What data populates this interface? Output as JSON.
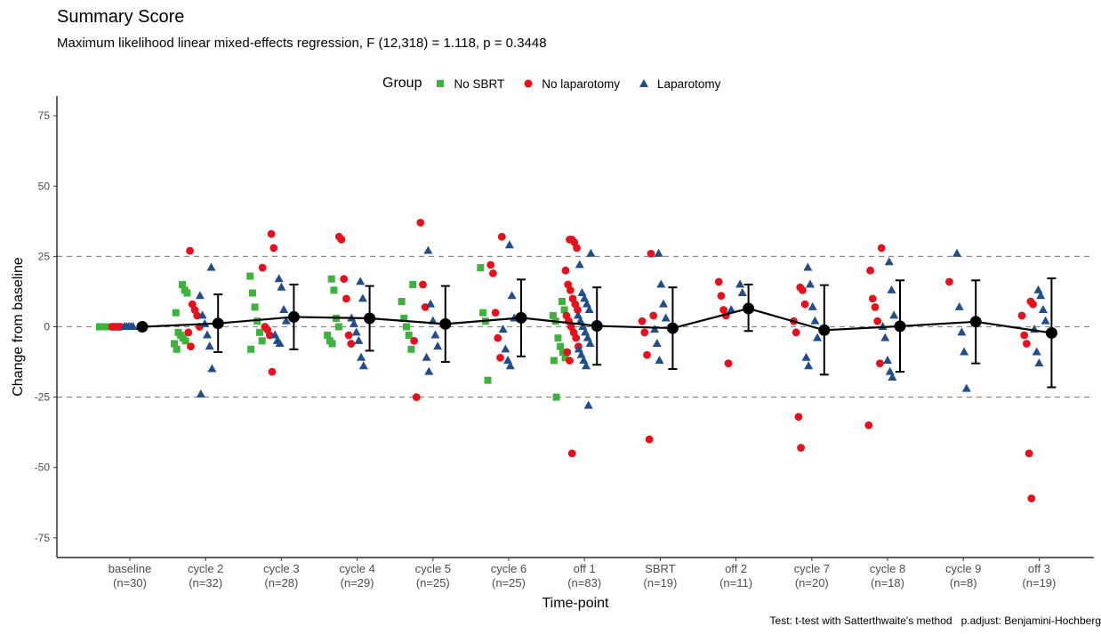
{
  "chart_data": {
    "type": "scatter",
    "title": "Summary Score",
    "subtitle": "Maximum likelihood linear mixed-effects regression, F (12,318) = 1.118, p = 0.3448",
    "xlabel": "Time-point",
    "ylabel": "Change from baseline",
    "ylim": [
      -82,
      82
    ],
    "yticks": [
      -75,
      -50,
      -25,
      0,
      25,
      50,
      75
    ],
    "reference_lines": [
      -25,
      0,
      25
    ],
    "grid": false,
    "legend_title": "Group",
    "legend_position": "top",
    "footer": "Test: t-test with Satterthwaite's method   p.adjust: Benjamini-Hochberg",
    "categories": [
      "baseline",
      "cycle 2",
      "cycle 3",
      "cycle 4",
      "cycle 5",
      "cycle 6",
      "off 1",
      "SBRT",
      "off 2",
      "cycle 7",
      "cycle 8",
      "cycle 9",
      "off 3"
    ],
    "category_n": [
      "(n=30)",
      "(n=32)",
      "(n=28)",
      "(n=29)",
      "(n=25)",
      "(n=25)",
      "(n=83)",
      "(n=19)",
      "(n=11)",
      "(n=20)",
      "(n=18)",
      "(n=8)",
      "(n=19)"
    ],
    "series": [
      {
        "name": "No SBRT",
        "color": "#3cb43c",
        "marker": "square",
        "points": [
          [
            0,
            0
          ],
          [
            0,
            0
          ],
          [
            0,
            0
          ],
          [
            0,
            0
          ],
          [
            0,
            0
          ],
          [
            0,
            0
          ],
          [
            0,
            0
          ],
          [
            0,
            0
          ],
          [
            0,
            0
          ],
          [
            0,
            0
          ],
          [
            1,
            15
          ],
          [
            1,
            13
          ],
          [
            1,
            12
          ],
          [
            1,
            5
          ],
          [
            1,
            -2
          ],
          [
            1,
            -3
          ],
          [
            1,
            -4
          ],
          [
            1,
            -5
          ],
          [
            1,
            -6
          ],
          [
            1,
            -8
          ],
          [
            2,
            18
          ],
          [
            2,
            12
          ],
          [
            2,
            7
          ],
          [
            2,
            2
          ],
          [
            2,
            -2
          ],
          [
            2,
            -5
          ],
          [
            2,
            -8
          ],
          [
            3,
            17
          ],
          [
            3,
            13
          ],
          [
            3,
            3
          ],
          [
            3,
            0
          ],
          [
            3,
            -3
          ],
          [
            3,
            -5
          ],
          [
            3,
            -6
          ],
          [
            4,
            15
          ],
          [
            4,
            9
          ],
          [
            4,
            3
          ],
          [
            4,
            0
          ],
          [
            4,
            -3
          ],
          [
            4,
            -8
          ],
          [
            5,
            21
          ],
          [
            5,
            5
          ],
          [
            5,
            2
          ],
          [
            5,
            -19
          ],
          [
            6,
            9
          ],
          [
            6,
            6
          ],
          [
            6,
            4
          ],
          [
            6,
            2
          ],
          [
            6,
            -4
          ],
          [
            6,
            -7
          ],
          [
            6,
            -9
          ],
          [
            6,
            -11
          ],
          [
            6,
            -12
          ],
          [
            6,
            -25
          ]
        ]
      },
      {
        "name": "No laparotomy",
        "color": "#e8101a",
        "marker": "circle",
        "points": [
          [
            0,
            0
          ],
          [
            0,
            0
          ],
          [
            0,
            0
          ],
          [
            0,
            0
          ],
          [
            0,
            0
          ],
          [
            1,
            27
          ],
          [
            1,
            8
          ],
          [
            1,
            6
          ],
          [
            1,
            4
          ],
          [
            1,
            0
          ],
          [
            1,
            -2
          ],
          [
            1,
            -7
          ],
          [
            2,
            33
          ],
          [
            2,
            28
          ],
          [
            2,
            21
          ],
          [
            2,
            0
          ],
          [
            2,
            -1
          ],
          [
            2,
            -3
          ],
          [
            2,
            -16
          ],
          [
            3,
            32
          ],
          [
            3,
            31
          ],
          [
            3,
            17
          ],
          [
            3,
            10
          ],
          [
            3,
            -3
          ],
          [
            3,
            -6
          ],
          [
            4,
            37
          ],
          [
            4,
            15
          ],
          [
            4,
            7
          ],
          [
            4,
            -5
          ],
          [
            4,
            -25
          ],
          [
            5,
            32
          ],
          [
            5,
            22
          ],
          [
            5,
            19
          ],
          [
            5,
            5
          ],
          [
            5,
            -4
          ],
          [
            5,
            -11
          ],
          [
            6,
            31
          ],
          [
            6,
            31
          ],
          [
            6,
            30
          ],
          [
            6,
            28
          ],
          [
            6,
            20
          ],
          [
            6,
            15
          ],
          [
            6,
            13
          ],
          [
            6,
            10
          ],
          [
            6,
            8
          ],
          [
            6,
            6
          ],
          [
            6,
            4
          ],
          [
            6,
            2
          ],
          [
            6,
            0
          ],
          [
            6,
            -2
          ],
          [
            6,
            -4
          ],
          [
            6,
            -7
          ],
          [
            6,
            -9
          ],
          [
            6,
            -12
          ],
          [
            6,
            -45
          ],
          [
            7,
            26
          ],
          [
            7,
            4
          ],
          [
            7,
            2
          ],
          [
            7,
            -2
          ],
          [
            7,
            -10
          ],
          [
            7,
            -40
          ],
          [
            8,
            16
          ],
          [
            8,
            11
          ],
          [
            8,
            6
          ],
          [
            8,
            4
          ],
          [
            8,
            -13
          ],
          [
            9,
            14
          ],
          [
            9,
            13
          ],
          [
            9,
            8
          ],
          [
            9,
            2
          ],
          [
            9,
            -2
          ],
          [
            9,
            -32
          ],
          [
            9,
            -43
          ],
          [
            10,
            28
          ],
          [
            10,
            20
          ],
          [
            10,
            10
          ],
          [
            10,
            7
          ],
          [
            10,
            2
          ],
          [
            10,
            -13
          ],
          [
            10,
            -35
          ],
          [
            11,
            16
          ],
          [
            12,
            9
          ],
          [
            12,
            8
          ],
          [
            12,
            4
          ],
          [
            12,
            -3
          ],
          [
            12,
            -6
          ],
          [
            12,
            -45
          ],
          [
            12,
            -61
          ]
        ]
      },
      {
        "name": "Laparotomy",
        "color": "#1f4e8c",
        "marker": "triangle",
        "points": [
          [
            0,
            0
          ],
          [
            0,
            0
          ],
          [
            0,
            0
          ],
          [
            0,
            0
          ],
          [
            0,
            0
          ],
          [
            1,
            21
          ],
          [
            1,
            11
          ],
          [
            1,
            4
          ],
          [
            1,
            1
          ],
          [
            1,
            -3
          ],
          [
            1,
            -7
          ],
          [
            1,
            -15
          ],
          [
            1,
            -24
          ],
          [
            2,
            17
          ],
          [
            2,
            14
          ],
          [
            2,
            6
          ],
          [
            2,
            2
          ],
          [
            2,
            -3
          ],
          [
            2,
            -5
          ],
          [
            2,
            -6
          ],
          [
            3,
            16
          ],
          [
            3,
            10
          ],
          [
            3,
            3
          ],
          [
            3,
            1
          ],
          [
            3,
            -2
          ],
          [
            3,
            -5
          ],
          [
            3,
            -11
          ],
          [
            3,
            -14
          ],
          [
            4,
            27
          ],
          [
            4,
            8
          ],
          [
            4,
            2
          ],
          [
            4,
            -3
          ],
          [
            4,
            -7
          ],
          [
            4,
            -11
          ],
          [
            4,
            -16
          ],
          [
            5,
            29
          ],
          [
            5,
            11
          ],
          [
            5,
            3
          ],
          [
            5,
            -1
          ],
          [
            5,
            -8
          ],
          [
            5,
            -12
          ],
          [
            5,
            -14
          ],
          [
            6,
            26
          ],
          [
            6,
            22
          ],
          [
            6,
            12
          ],
          [
            6,
            10
          ],
          [
            6,
            8
          ],
          [
            6,
            6
          ],
          [
            6,
            4
          ],
          [
            6,
            2
          ],
          [
            6,
            0
          ],
          [
            6,
            -2
          ],
          [
            6,
            -4
          ],
          [
            6,
            -6
          ],
          [
            6,
            -8
          ],
          [
            6,
            -10
          ],
          [
            6,
            -12
          ],
          [
            6,
            -14
          ],
          [
            6,
            -28
          ],
          [
            7,
            26
          ],
          [
            7,
            15
          ],
          [
            7,
            8
          ],
          [
            7,
            3
          ],
          [
            7,
            -1
          ],
          [
            7,
            -6
          ],
          [
            7,
            -12
          ],
          [
            8,
            15
          ],
          [
            8,
            12
          ],
          [
            8,
            6
          ],
          [
            9,
            21
          ],
          [
            9,
            15
          ],
          [
            9,
            7
          ],
          [
            9,
            2
          ],
          [
            9,
            -4
          ],
          [
            9,
            -11
          ],
          [
            9,
            -14
          ],
          [
            10,
            23
          ],
          [
            10,
            13
          ],
          [
            10,
            4
          ],
          [
            10,
            0
          ],
          [
            10,
            -4
          ],
          [
            10,
            -12
          ],
          [
            10,
            -16
          ],
          [
            10,
            -18
          ],
          [
            11,
            26
          ],
          [
            11,
            7
          ],
          [
            11,
            -2
          ],
          [
            11,
            -9
          ],
          [
            11,
            -22
          ],
          [
            12,
            13
          ],
          [
            12,
            11
          ],
          [
            12,
            6
          ],
          [
            12,
            2
          ],
          [
            12,
            -1
          ],
          [
            12,
            -9
          ],
          [
            12,
            -13
          ]
        ]
      }
    ],
    "means": [
      0,
      1.2,
      3.5,
      3,
      1,
      3.2,
      0.3,
      -0.5,
      6.5,
      -1.2,
      0.2,
      1.8,
      -2.2
    ],
    "ci_lower": [
      0,
      -9,
      -8,
      -8.5,
      -12.5,
      -10.5,
      -13.5,
      -15,
      -1.5,
      -17,
      -16,
      -13,
      -21.5
    ],
    "ci_upper": [
      0,
      11.5,
      15,
      14.5,
      14.5,
      16.8,
      14,
      14,
      15,
      14.8,
      16.5,
      16.5,
      17.2
    ]
  }
}
